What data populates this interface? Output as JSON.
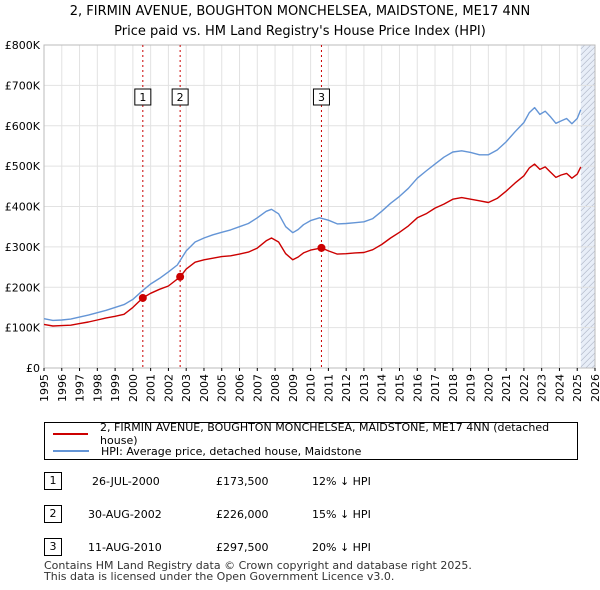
{
  "chart_data": {
    "type": "line",
    "title": "2, FIRMIN AVENUE, BOUGHTON MONCHELSEA, MAIDSTONE, ME17 4NN",
    "subtitle": "Price paid vs. HM Land Registry's House Price Index (HPI)",
    "xlabel": "",
    "ylabel": "",
    "xlim": [
      1995,
      2026
    ],
    "ylim": [
      0,
      800000
    ],
    "y_ticks": [
      {
        "value": 0,
        "label": "£0"
      },
      {
        "value": 100000,
        "label": "£100K"
      },
      {
        "value": 200000,
        "label": "£200K"
      },
      {
        "value": 300000,
        "label": "£300K"
      },
      {
        "value": 400000,
        "label": "£400K"
      },
      {
        "value": 500000,
        "label": "£500K"
      },
      {
        "value": 600000,
        "label": "£600K"
      },
      {
        "value": 700000,
        "label": "£700K"
      },
      {
        "value": 800000,
        "label": "£800K"
      }
    ],
    "x_ticks": [
      "1995",
      "1996",
      "1997",
      "1998",
      "1999",
      "2000",
      "2001",
      "2002",
      "2003",
      "2004",
      "2005",
      "2006",
      "2007",
      "2008",
      "2009",
      "2010",
      "2011",
      "2012",
      "2013",
      "2014",
      "2015",
      "2016",
      "2017",
      "2018",
      "2019",
      "2020",
      "2021",
      "2022",
      "2023",
      "2024",
      "2025",
      "2026"
    ],
    "grid": true,
    "colors": {
      "property": "#cc0000",
      "hpi": "#6495d6",
      "shade": "#e8eef8",
      "marker": "#cc0000"
    },
    "series": [
      {
        "name": "2, FIRMIN AVENUE, BOUGHTON MONCHELSEA, MAIDSTONE, ME17 4NN (detached house)",
        "color": "#cc0000",
        "x": [
          1995.0,
          1995.5,
          1996.0,
          1996.5,
          1997.0,
          1997.5,
          1998.0,
          1998.5,
          1999.0,
          1999.5,
          2000.0,
          2000.56,
          2001.0,
          2001.5,
          2002.0,
          2002.66,
          2003.0,
          2003.5,
          2004.0,
          2004.5,
          2005.0,
          2005.5,
          2006.0,
          2006.5,
          2007.0,
          2007.5,
          2007.8,
          2008.2,
          2008.6,
          2009.0,
          2009.3,
          2009.6,
          2010.0,
          2010.61,
          2011.0,
          2011.5,
          2012.0,
          2012.5,
          2013.0,
          2013.5,
          2014.0,
          2014.5,
          2015.0,
          2015.5,
          2016.0,
          2016.5,
          2017.0,
          2017.5,
          2018.0,
          2018.5,
          2019.0,
          2019.5,
          2020.0,
          2020.5,
          2021.0,
          2021.5,
          2022.0,
          2022.3,
          2022.6,
          2022.9,
          2023.2,
          2023.5,
          2023.8,
          2024.1,
          2024.4,
          2024.7,
          2025.0,
          2025.2
        ],
        "values": [
          108000,
          104000,
          105000,
          106000,
          110000,
          114000,
          119000,
          124000,
          128000,
          133000,
          150000,
          173500,
          185000,
          195000,
          203000,
          226000,
          245000,
          262000,
          268000,
          272000,
          276000,
          278000,
          282000,
          287000,
          297000,
          315000,
          322000,
          312000,
          283000,
          268000,
          275000,
          285000,
          292000,
          297500,
          290000,
          282000,
          283000,
          285000,
          286000,
          293000,
          306000,
          322000,
          336000,
          352000,
          372000,
          382000,
          396000,
          406000,
          418000,
          422000,
          418000,
          414000,
          410000,
          420000,
          438000,
          458000,
          476000,
          495000,
          505000,
          492000,
          498000,
          485000,
          472000,
          478000,
          482000,
          470000,
          480000,
          498000
        ]
      },
      {
        "name": "HPI: Average price, detached house, Maidstone",
        "color": "#6495d6",
        "x": [
          1995.0,
          1995.5,
          1996.0,
          1996.5,
          1997.0,
          1997.5,
          1998.0,
          1998.5,
          1999.0,
          1999.5,
          2000.0,
          2000.5,
          2001.0,
          2001.5,
          2002.0,
          2002.5,
          2003.0,
          2003.5,
          2004.0,
          2004.5,
          2005.0,
          2005.5,
          2006.0,
          2006.5,
          2007.0,
          2007.5,
          2007.8,
          2008.2,
          2008.6,
          2009.0,
          2009.3,
          2009.6,
          2010.0,
          2010.5,
          2011.0,
          2011.5,
          2012.0,
          2012.5,
          2013.0,
          2013.5,
          2014.0,
          2014.5,
          2015.0,
          2015.5,
          2016.0,
          2016.5,
          2017.0,
          2017.5,
          2018.0,
          2018.5,
          2019.0,
          2019.5,
          2020.0,
          2020.5,
          2021.0,
          2021.5,
          2022.0,
          2022.3,
          2022.6,
          2022.9,
          2023.2,
          2023.5,
          2023.8,
          2024.1,
          2024.4,
          2024.7,
          2025.0,
          2025.2
        ],
        "values": [
          122000,
          118000,
          119000,
          121000,
          126000,
          131000,
          137000,
          143000,
          150000,
          157000,
          170000,
          190000,
          208000,
          222000,
          238000,
          255000,
          290000,
          312000,
          322000,
          330000,
          336000,
          342000,
          350000,
          358000,
          372000,
          388000,
          393000,
          382000,
          350000,
          335000,
          343000,
          355000,
          365000,
          372000,
          366000,
          357000,
          358000,
          360000,
          362000,
          370000,
          388000,
          408000,
          425000,
          445000,
          470000,
          488000,
          505000,
          522000,
          535000,
          538000,
          534000,
          528000,
          528000,
          540000,
          560000,
          585000,
          608000,
          632000,
          645000,
          628000,
          636000,
          622000,
          606000,
          612000,
          618000,
          605000,
          618000,
          640000
        ]
      }
    ],
    "sale_markers": [
      {
        "label": "1",
        "x": 2000.56,
        "value": 173500
      },
      {
        "label": "2",
        "x": 2002.66,
        "value": 226000
      },
      {
        "label": "3",
        "x": 2010.61,
        "value": 297500
      }
    ],
    "shaded_region": [
      2025.2,
      2026
    ]
  },
  "legend": {
    "property_label": "2, FIRMIN AVENUE, BOUGHTON MONCHELSEA, MAIDSTONE, ME17 4NN (detached house)",
    "hpi_label": "HPI: Average price, detached house, Maidstone"
  },
  "sales": [
    {
      "num": "1",
      "date": "26-JUL-2000",
      "price": "£173,500",
      "hpi": "12% ↓ HPI"
    },
    {
      "num": "2",
      "date": "30-AUG-2002",
      "price": "£226,000",
      "hpi": "15% ↓ HPI"
    },
    {
      "num": "3",
      "date": "11-AUG-2010",
      "price": "£297,500",
      "hpi": "20% ↓ HPI"
    }
  ],
  "footer": {
    "line1": "Contains HM Land Registry data © Crown copyright and database right 2025.",
    "line2": "This data is licensed under the Open Government Licence v3.0."
  }
}
